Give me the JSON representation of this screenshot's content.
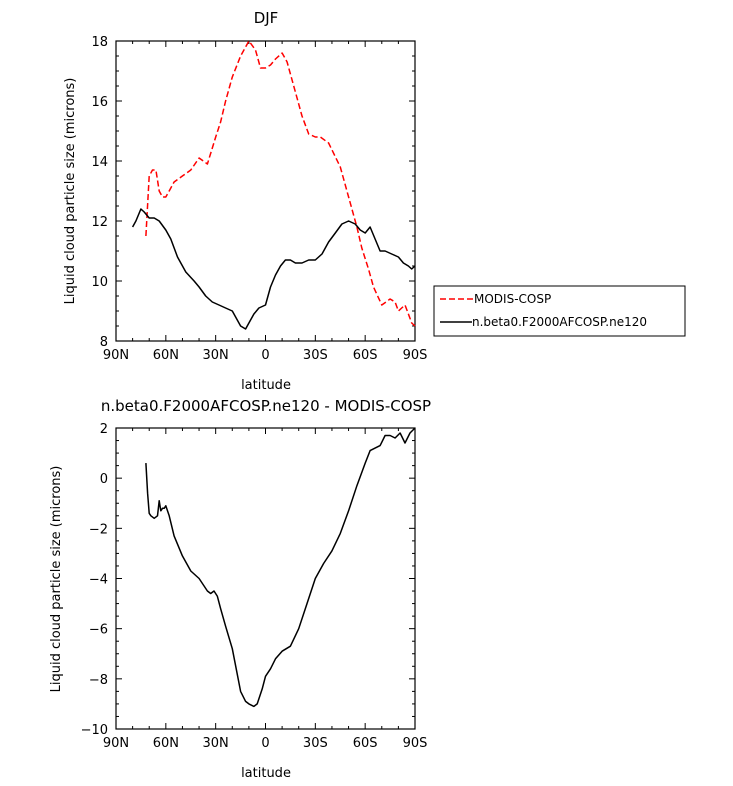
{
  "chart_data": [
    {
      "type": "line",
      "title": "DJF",
      "xlabel": "latitude",
      "ylabel": "Liquid cloud particle size (microns)",
      "xlim": [
        90,
        -90
      ],
      "ylim": [
        8,
        18
      ],
      "x_ticks": [
        90,
        60,
        30,
        0,
        -30,
        -60,
        -90
      ],
      "x_tick_labels": [
        "90N",
        "60N",
        "30N",
        "0",
        "30S",
        "60S",
        "90S"
      ],
      "y_ticks": [
        8,
        10,
        12,
        14,
        16,
        18
      ],
      "y_tick_labels": [
        "8",
        "10",
        "12",
        "14",
        "16",
        "18"
      ],
      "legend_position": "right",
      "series": [
        {
          "name": "MODIS-COSP",
          "color": "#ff0000",
          "dash": "dashed",
          "x": [
            72,
            70,
            68,
            66,
            64,
            62,
            60,
            58,
            55,
            50,
            45,
            40,
            35,
            30,
            27,
            24,
            20,
            15,
            10,
            6,
            3,
            0,
            -3,
            -6,
            -10,
            -13,
            -15,
            -18,
            -22,
            -26,
            -30,
            -33,
            -38,
            -45,
            -50,
            -55,
            -58,
            -62,
            -65,
            -70,
            -75,
            -78,
            -80,
            -82,
            -84,
            -86,
            -88,
            -90
          ],
          "y": [
            11.5,
            13.5,
            13.7,
            13.7,
            13.0,
            12.8,
            12.8,
            13.0,
            13.3,
            13.5,
            13.7,
            14.1,
            13.9,
            14.8,
            15.3,
            16.0,
            16.8,
            17.5,
            18.0,
            17.7,
            17.1,
            17.1,
            17.2,
            17.4,
            17.6,
            17.3,
            16.9,
            16.3,
            15.5,
            14.9,
            14.8,
            14.8,
            14.6,
            13.8,
            12.8,
            11.8,
            11.1,
            10.4,
            9.8,
            9.2,
            9.4,
            9.3,
            9.0,
            9.1,
            9.2,
            8.9,
            8.6,
            8.5
          ]
        },
        {
          "name": "n.beta0.F2000AFCOSP.ne120",
          "color": "#000000",
          "dash": "solid",
          "x": [
            80,
            78,
            75,
            73,
            70,
            67,
            64,
            60,
            57,
            53,
            48,
            43,
            40,
            36,
            32,
            28,
            24,
            20,
            15,
            12,
            10,
            7,
            4,
            0,
            -3,
            -6,
            -9,
            -12,
            -15,
            -18,
            -22,
            -26,
            -30,
            -34,
            -38,
            -42,
            -46,
            -50,
            -54,
            -57,
            -60,
            -63,
            -66,
            -69,
            -72,
            -76,
            -80,
            -83,
            -86,
            -88,
            -90
          ],
          "y": [
            11.8,
            12.0,
            12.4,
            12.3,
            12.1,
            12.1,
            12.0,
            11.7,
            11.4,
            10.8,
            10.3,
            10.0,
            9.8,
            9.5,
            9.3,
            9.2,
            9.1,
            9.0,
            8.5,
            8.4,
            8.6,
            8.9,
            9.1,
            9.2,
            9.8,
            10.2,
            10.5,
            10.7,
            10.7,
            10.6,
            10.6,
            10.7,
            10.7,
            10.9,
            11.3,
            11.6,
            11.9,
            12.0,
            11.9,
            11.7,
            11.6,
            11.8,
            11.4,
            11.0,
            11.0,
            10.9,
            10.8,
            10.6,
            10.5,
            10.4,
            10.5
          ]
        }
      ]
    },
    {
      "type": "line",
      "title": "n.beta0.F2000AFCOSP.ne120 - MODIS-COSP",
      "xlabel": "latitude",
      "ylabel": "Liquid cloud particle size (microns)",
      "xlim": [
        90,
        -90
      ],
      "ylim": [
        -10,
        2
      ],
      "x_ticks": [
        90,
        60,
        30,
        0,
        -30,
        -60,
        -90
      ],
      "x_tick_labels": [
        "90N",
        "60N",
        "30N",
        "0",
        "30S",
        "60S",
        "90S"
      ],
      "y_ticks": [
        -10,
        -8,
        -6,
        -4,
        -2,
        0,
        2
      ],
      "y_tick_labels": [
        "−10",
        "−8",
        "−6",
        "−4",
        "−2",
        "0",
        "2"
      ],
      "series": [
        {
          "name": "n.beta0.F2000AFCOSP.ne120 - MODIS-COSP",
          "color": "#000000",
          "dash": "solid",
          "x": [
            72,
            71,
            70,
            69,
            67,
            65,
            64,
            63,
            62,
            61,
            60,
            58,
            55,
            50,
            45,
            40,
            35,
            33,
            31,
            29,
            27,
            24,
            20,
            15,
            12,
            10,
            7,
            5,
            2,
            0,
            -3,
            -6,
            -10,
            -15,
            -20,
            -25,
            -30,
            -35,
            -40,
            -45,
            -50,
            -55,
            -60,
            -63,
            -66,
            -69,
            -72,
            -75,
            -78,
            -81,
            -84,
            -87,
            -90
          ],
          "y": [
            0.6,
            -0.6,
            -1.4,
            -1.5,
            -1.6,
            -1.5,
            -0.9,
            -1.3,
            -1.2,
            -1.2,
            -1.1,
            -1.5,
            -2.3,
            -3.1,
            -3.7,
            -4.0,
            -4.5,
            -4.6,
            -4.5,
            -4.7,
            -5.2,
            -5.9,
            -6.8,
            -8.5,
            -8.9,
            -9.0,
            -9.1,
            -9.0,
            -8.4,
            -7.9,
            -7.6,
            -7.2,
            -6.9,
            -6.7,
            -6.0,
            -5.0,
            -4.0,
            -3.4,
            -2.9,
            -2.2,
            -1.3,
            -0.3,
            0.6,
            1.1,
            1.2,
            1.3,
            1.7,
            1.7,
            1.6,
            1.8,
            1.4,
            1.8,
            2.0
          ]
        }
      ]
    }
  ]
}
